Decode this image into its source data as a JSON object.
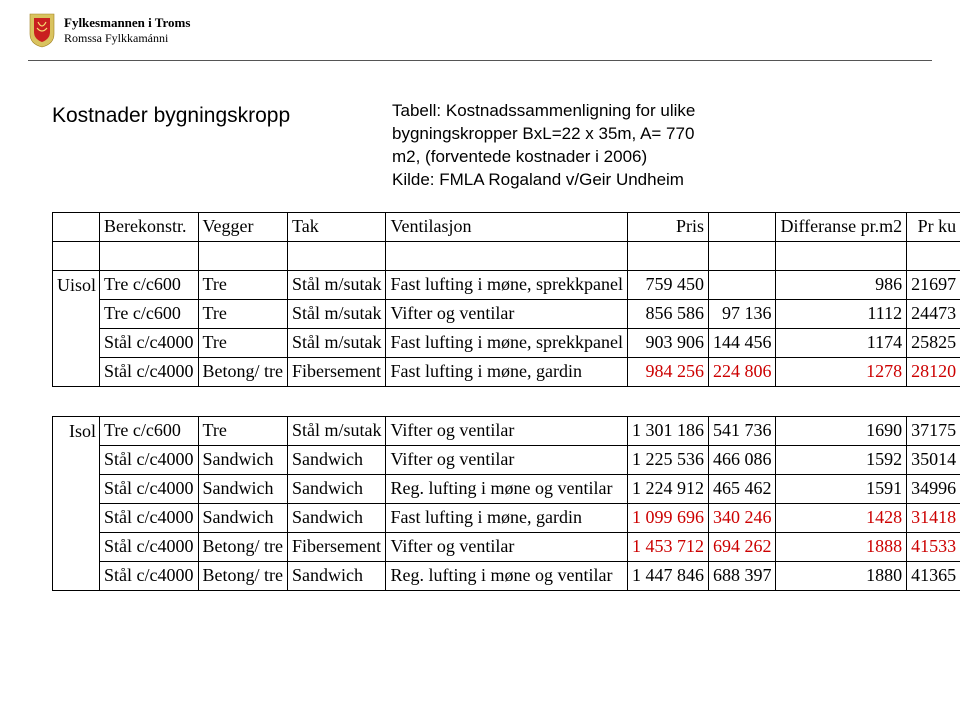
{
  "logo": {
    "line1": "Fylkesmannen i Troms",
    "line2": "Romssa Fylkkamánni"
  },
  "title": "Kostnader bygningskropp",
  "subtitle_l1": "Tabell: Kostnadssammenligning for ulike",
  "subtitle_l2": "bygningskropper BxL=22 x 35m, A= 770",
  "subtitle_l3": "m2, (forventede kostnader i 2006)",
  "subtitle_l4": "Kilde: FMLA Rogaland v/Geir Undheim",
  "head": {
    "c1": "Berekonstr.",
    "c2": "Vegger",
    "c3": "Tak",
    "c4": "Ventilasjon",
    "c5": "Pris",
    "c7": "Differanse pr.m2",
    "c8": "Pr ku"
  },
  "uisol_label": "Uisol",
  "isol_label": "Isol",
  "uisol": [
    {
      "c1": "Tre c/c600",
      "c2": "Tre",
      "c3": "Stål m/sutak",
      "c4": "Fast lufting i møne, sprekkpanel",
      "c5": "759 450",
      "c6": "",
      "c7": "986",
      "c8": "21697",
      "red": false
    },
    {
      "c1": "Tre c/c600",
      "c2": "Tre",
      "c3": "Stål m/sutak",
      "c4": "Vifter og ventilar",
      "c5": "856 586",
      "c6": "97 136",
      "c7": "1112",
      "c8": "24473",
      "red": false
    },
    {
      "c1": "Stål c/c4000",
      "c2": "Tre",
      "c3": "Stål m/sutak",
      "c4": "Fast lufting i møne, sprekkpanel",
      "c5": "903 906",
      "c6": "144 456",
      "c7": "1174",
      "c8": "25825",
      "red": false
    },
    {
      "c1": "Stål c/c4000",
      "c2": "Betong/ tre",
      "c3": "Fibersement",
      "c4": "Fast lufting i møne, gardin",
      "c5": "984 256",
      "c6": "224 806",
      "c7": "1278",
      "c8": "28120",
      "red": true
    }
  ],
  "isol": [
    {
      "c1": "Tre c/c600",
      "c2": "Tre",
      "c3": "Stål m/sutak",
      "c4": "Vifter og ventilar",
      "c5": "1 301 186",
      "c6": "541 736",
      "c7": "1690",
      "c8": "37175",
      "red": false
    },
    {
      "c1": "Stål c/c4000",
      "c2": "Sandwich",
      "c3": "Sandwich",
      "c4": "Vifter og ventilar",
      "c5": "1 225 536",
      "c6": "466 086",
      "c7": "1592",
      "c8": "35014",
      "red": false
    },
    {
      "c1": "Stål c/c4000",
      "c2": "Sandwich",
      "c3": "Sandwich",
      "c4": "Reg. lufting i møne og ventilar",
      "c5": "1 224 912",
      "c6": "465 462",
      "c7": "1591",
      "c8": "34996",
      "red": false
    },
    {
      "c1": "Stål c/c4000",
      "c2": "Sandwich",
      "c3": "Sandwich",
      "c4": "Fast lufting i møne, gardin",
      "c5": "1 099 696",
      "c6": "340 246",
      "c7": "1428",
      "c8": "31418",
      "red": true
    },
    {
      "c1": "Stål c/c4000",
      "c2": "Betong/ tre",
      "c3": "Fibersement",
      "c4": "Vifter og ventilar",
      "c5": "1 453 712",
      "c6": "694 262",
      "c7": "1888",
      "c8": "41533",
      "red": true
    },
    {
      "c1": "Stål c/c4000",
      "c2": "Betong/ tre",
      "c3": "Sandwich",
      "c4": "Reg. lufting i møne og ventilar",
      "c5": "1 447 846",
      "c6": "688 397",
      "c7": "1880",
      "c8": "41365",
      "red": false
    }
  ]
}
